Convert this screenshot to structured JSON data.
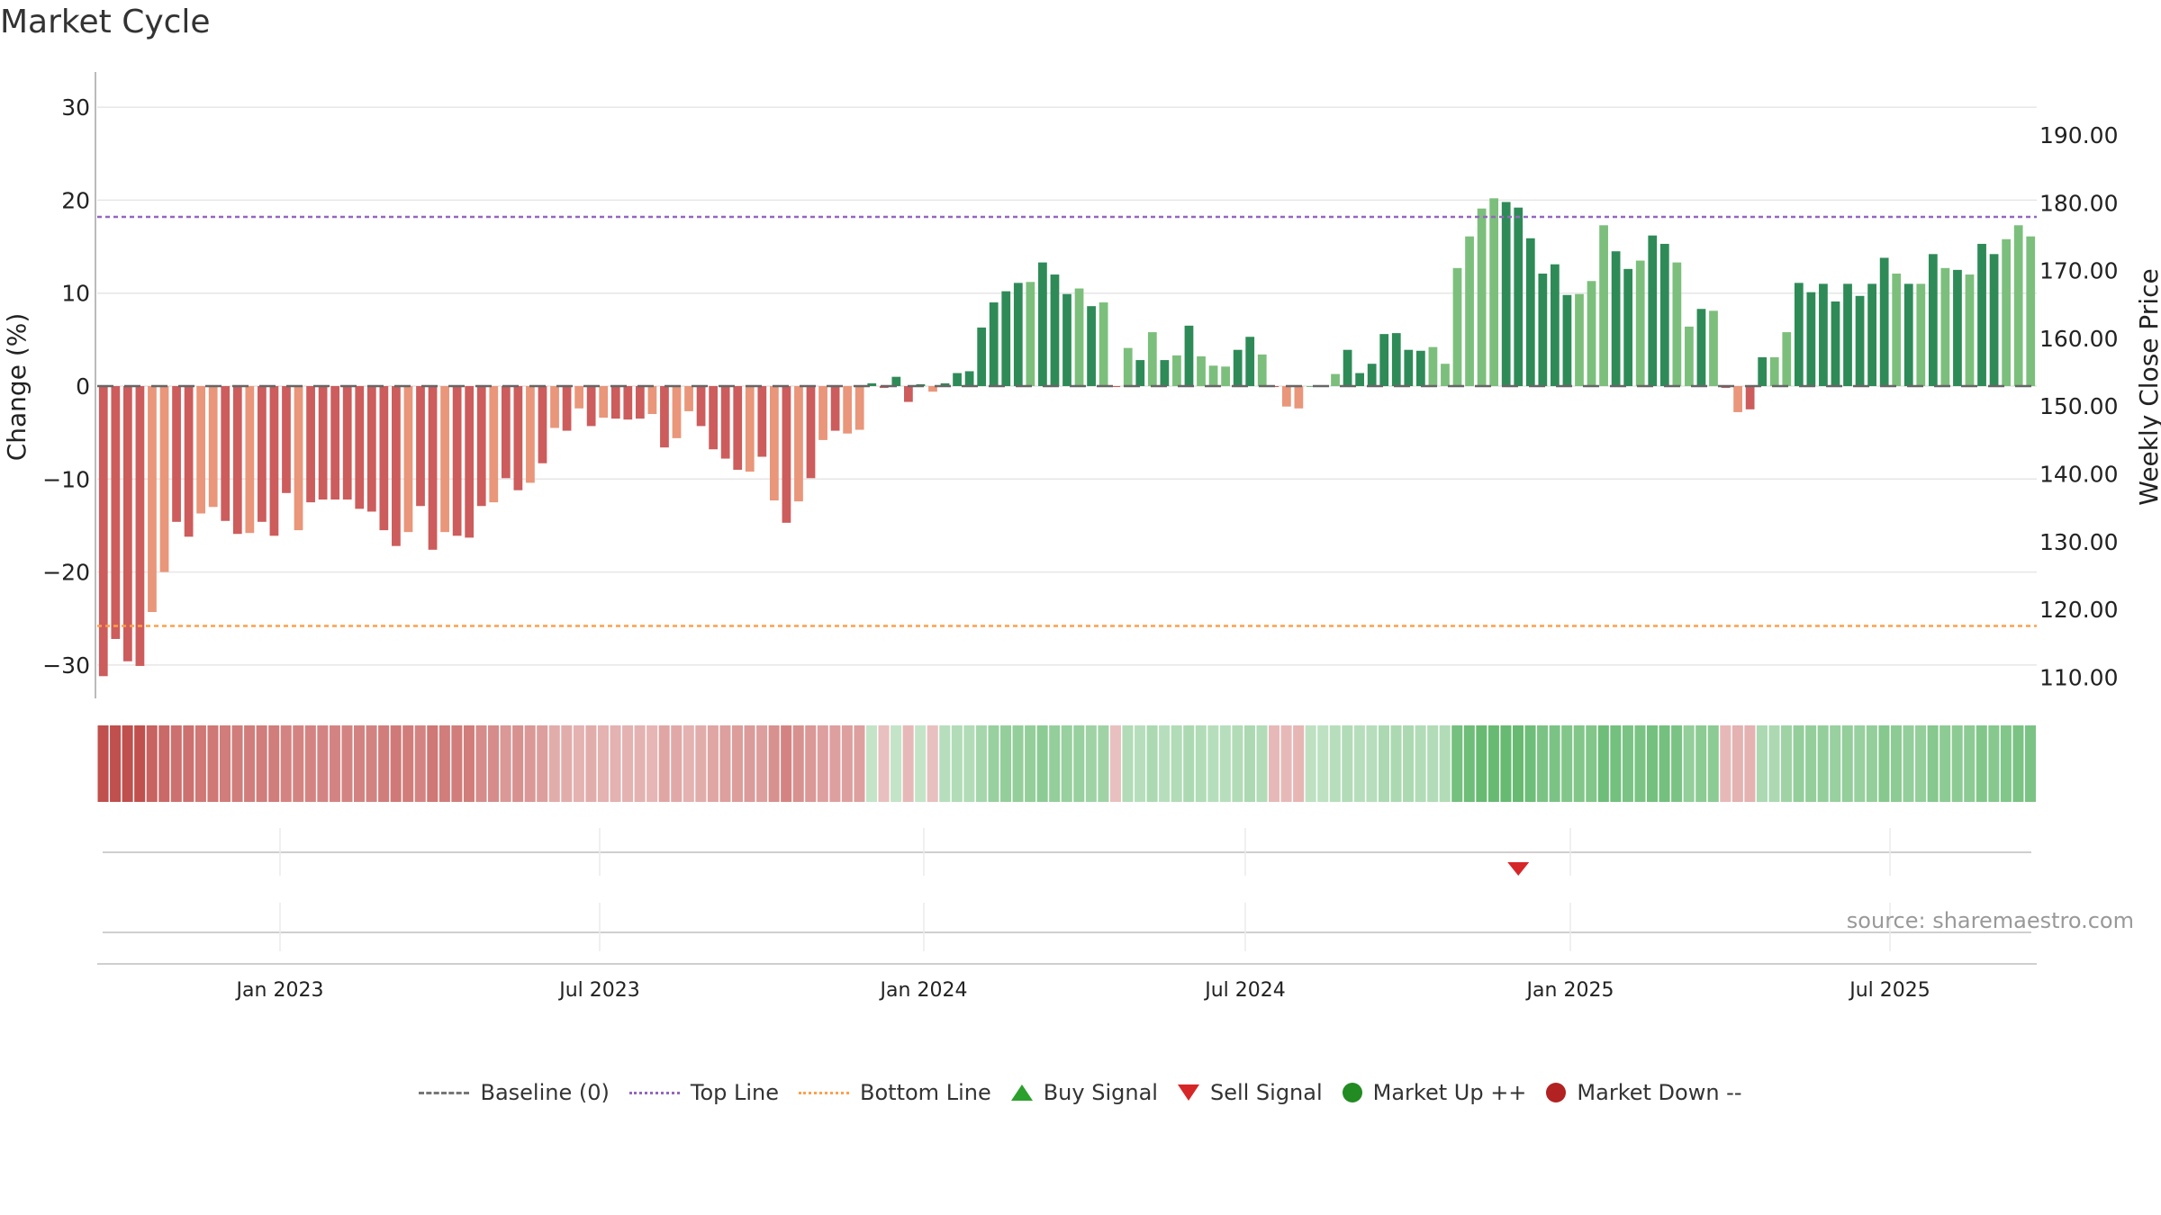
{
  "title": "Market Cycle",
  "source": "source: sharemaestro.com",
  "legend": {
    "baseline": "Baseline (0)",
    "top_line": "Top Line",
    "bottom_line": "Bottom Line",
    "buy": "Buy Signal",
    "sell": "Sell Signal",
    "up": "Market Up ++",
    "down": "Market Down --"
  },
  "colors": {
    "up_strong": "#2e8b57",
    "up_light": "#7cbf7c",
    "down_strong": "#cd5c5c",
    "down_light": "#e9967a",
    "top_line": "#9467bd",
    "bottom_line": "#ff9f4a",
    "sell": "#d62728",
    "buy": "#2ca02c",
    "market_up": "#228b22",
    "market_down": "#b22222"
  },
  "chart_data": {
    "type": "bar",
    "ylabel_left": "Change (%)",
    "ylabel_right": "Weekly Close Price",
    "left_ticks": [
      30,
      20,
      10,
      0,
      -10,
      -20,
      -30
    ],
    "left_tick_labels": [
      "30",
      "20",
      "10",
      "0",
      "−10",
      "−20",
      "−30"
    ],
    "right_ticks": [
      "190.00",
      "180.00",
      "170.00",
      "160.00",
      "150.00",
      "140.00",
      "130.00",
      "120.00",
      "110.00"
    ],
    "x_ticks": [
      "Jan 2023",
      "Jul 2023",
      "Jan 2024",
      "Jul 2024",
      "Jan 2025",
      "Jul 2025"
    ],
    "ylim": [
      -34,
      34
    ],
    "top_line": 18.2,
    "bottom_line": -25.8,
    "values": [
      -31.2,
      -27.2,
      -29.6,
      -30.1,
      -24.3,
      -20.0,
      -14.6,
      -16.2,
      -13.7,
      -13.0,
      -14.5,
      -15.9,
      -15.8,
      -14.6,
      -16.1,
      -11.5,
      -15.5,
      -12.5,
      -12.2,
      -12.2,
      -12.2,
      -13.2,
      -13.5,
      -15.5,
      -17.2,
      -15.7,
      -12.9,
      -17.6,
      -15.7,
      -16.1,
      -16.3,
      -12.9,
      -12.5,
      -9.9,
      -11.2,
      -10.4,
      -8.3,
      -4.5,
      -4.8,
      -2.4,
      -4.3,
      -3.4,
      -3.5,
      -3.6,
      -3.5,
      -3.0,
      -6.6,
      -5.6,
      -2.7,
      -4.3,
      -6.8,
      -7.8,
      -9.0,
      -9.2,
      -7.6,
      -12.3,
      -14.7,
      -12.4,
      -9.9,
      -5.8,
      -4.8,
      -5.1,
      -4.7,
      0.3,
      -0.2,
      1.0,
      -1.7,
      0.2,
      -0.6,
      0.3,
      1.4,
      1.6,
      6.3,
      9.0,
      10.2,
      11.1,
      11.2,
      13.3,
      12.0,
      9.9,
      10.5,
      8.6,
      9.0,
      -0.1,
      4.1,
      2.8,
      5.8,
      2.8,
      3.3,
      6.5,
      3.2,
      2.2,
      2.1,
      3.9,
      5.3,
      3.4,
      -0.1,
      -2.2,
      -2.4,
      0.0,
      0.0,
      1.3,
      3.9,
      1.4,
      2.4,
      5.6,
      5.7,
      3.9,
      3.8,
      4.2,
      2.4,
      12.7,
      16.1,
      19.1,
      20.2,
      19.8,
      19.2,
      15.9,
      12.1,
      13.1,
      9.8,
      9.9,
      11.3,
      17.3,
      14.5,
      12.6,
      13.5,
      16.2,
      15.3,
      13.3,
      6.4,
      8.3,
      8.1,
      -0.2,
      -2.8,
      -2.5,
      3.1,
      3.1,
      5.8,
      11.1,
      10.1,
      11.0,
      9.1,
      11.0,
      9.7,
      11.0,
      13.8,
      12.1,
      11.0,
      11.0,
      14.2,
      12.7,
      12.5,
      12.0,
      15.3,
      14.2,
      15.8,
      17.3,
      16.1
    ],
    "tone": "SSSSLLSSLLSSLSSSLSSSSSSSSLSSLSSSLSSLSLSLSLSSSLSLLSSSSLSLSLSLSLLSSSSSLSSSSSSSLSSSLSLSLSLSLSLLLSSLSLLLSLSSSSSSSLLLLLLSSSSSSLLLSSLSSLLSLSLSSLLSSSSSSSSLSLSLSLSSLLLLSSLSSL",
    "heat": [
      1.0,
      1.0,
      1.0,
      1.0,
      0.85,
      0.8,
      0.75,
      0.75,
      0.7,
      0.7,
      0.65,
      0.65,
      0.65,
      0.65,
      0.65,
      0.6,
      0.6,
      0.6,
      0.6,
      0.6,
      0.6,
      0.62,
      0.62,
      0.65,
      0.68,
      0.65,
      0.6,
      0.7,
      0.65,
      0.65,
      0.65,
      0.55,
      0.55,
      0.45,
      0.5,
      0.45,
      0.4,
      0.3,
      0.3,
      0.25,
      0.3,
      0.25,
      0.25,
      0.25,
      0.25,
      0.22,
      0.35,
      0.32,
      0.25,
      0.3,
      0.35,
      0.38,
      0.42,
      0.43,
      0.4,
      0.5,
      0.6,
      0.5,
      0.45,
      0.38,
      0.38,
      0.38,
      0.38,
      0.15,
      0.15,
      0.15,
      0.2,
      0.15,
      0.15,
      0.25,
      0.3,
      0.3,
      0.4,
      0.5,
      0.55,
      0.55,
      0.55,
      0.6,
      0.55,
      0.5,
      0.5,
      0.45,
      0.45,
      0.15,
      0.3,
      0.25,
      0.35,
      0.25,
      0.3,
      0.35,
      0.3,
      0.25,
      0.25,
      0.3,
      0.35,
      0.3,
      0.2,
      0.2,
      0.22,
      0.2,
      0.2,
      0.25,
      0.3,
      0.25,
      0.25,
      0.35,
      0.35,
      0.35,
      0.3,
      0.3,
      0.3,
      0.8,
      0.85,
      0.9,
      0.9,
      0.9,
      0.9,
      0.85,
      0.75,
      0.75,
      0.7,
      0.7,
      0.7,
      0.85,
      0.8,
      0.75,
      0.75,
      0.8,
      0.8,
      0.75,
      0.55,
      0.6,
      0.6,
      0.2,
      0.25,
      0.25,
      0.35,
      0.35,
      0.45,
      0.55,
      0.55,
      0.55,
      0.5,
      0.55,
      0.5,
      0.55,
      0.65,
      0.6,
      0.55,
      0.55,
      0.65,
      0.6,
      0.6,
      0.6,
      0.7,
      0.65,
      0.7,
      0.75,
      0.75
    ],
    "sell_signal_index": 116
  }
}
